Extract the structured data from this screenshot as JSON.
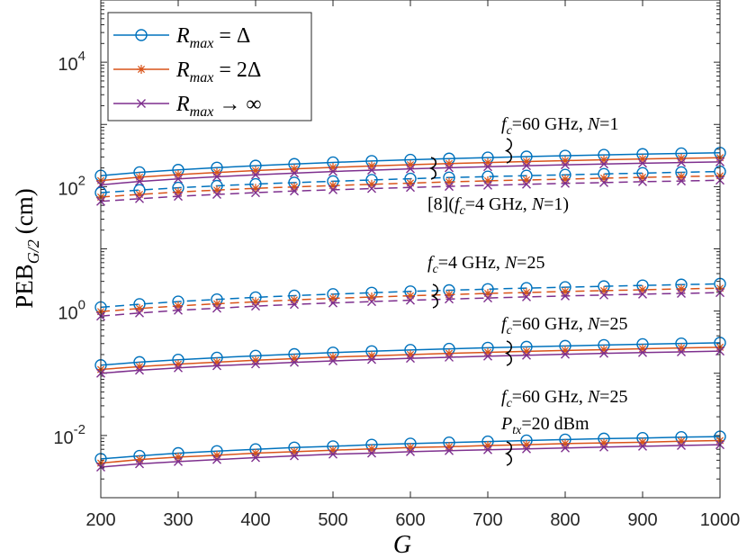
{
  "chart_data": {
    "type": "line",
    "x": [
      200,
      250,
      300,
      350,
      400,
      450,
      500,
      550,
      600,
      650,
      700,
      750,
      800,
      850,
      900,
      950,
      1000
    ],
    "xlabel": "G",
    "ylabel_main": "PEB",
    "ylabel_sub": "G/2",
    "ylabel_unit": "(cm)",
    "xlim": [
      200,
      1000
    ],
    "ylim": [
      0.001,
      100000
    ],
    "yscale": "log",
    "xticks": [
      "200",
      "300",
      "400",
      "500",
      "600",
      "700",
      "800",
      "900",
      "1000"
    ],
    "yticks": [
      {
        "value": 0.01,
        "base": "10",
        "exp": "-2"
      },
      {
        "value": 1,
        "base": "10",
        "exp": "0"
      },
      {
        "value": 100,
        "base": "10",
        "exp": "2"
      },
      {
        "value": 10000,
        "base": "10",
        "exp": "4"
      }
    ],
    "legend": {
      "position": "top-left",
      "entries": [
        {
          "label_main": "R",
          "label_sub": "max",
          "label_rest": " =  Δ",
          "color": "#0072BD",
          "marker": "o"
        },
        {
          "label_main": "R",
          "label_sub": "max",
          "label_rest": " = 2Δ",
          "color": "#D95319",
          "marker": "*"
        },
        {
          "label_main": "R",
          "label_sub": "max",
          "label_rest": " → ∞",
          "color": "#7E2F8E",
          "marker": "x"
        }
      ]
    },
    "groups": [
      {
        "label": "fc=60 GHz, N=1",
        "style": "solid",
        "series": [
          {
            "name": "Rmax = Δ",
            "color": "#0072BD",
            "marker": "o",
            "values": [
              150,
              170,
              186,
              202,
              217,
              231,
              245,
              258,
              270,
              282,
              293,
              304,
              314,
              324,
              333,
              342,
              350
            ]
          },
          {
            "name": "Rmax = 2Δ",
            "color": "#D95319",
            "marker": "*",
            "values": [
              125,
              142,
              156,
              169,
              181,
              193,
              204,
              215,
              225,
              235,
              244,
              253,
              262,
              270,
              278,
              285,
              292
            ]
          },
          {
            "name": "Rmax → ∞",
            "color": "#7E2F8E",
            "marker": "x",
            "values": [
              107,
              121,
              133,
              144,
              155,
              165,
              175,
              184,
              193,
              201,
              209,
              217,
              224,
              231,
              238,
              244,
              250
            ]
          }
        ]
      },
      {
        "label": "[8](fc=4 GHz, N=1)",
        "style": "dashed",
        "series": [
          {
            "name": "Rmax = Δ",
            "color": "#0072BD",
            "marker": "o",
            "values": [
              80,
              88,
              96,
              103,
              110,
              116,
              122,
              128,
              134,
              140,
              145,
              150,
              155,
              160,
              165,
              170,
              175
            ]
          },
          {
            "name": "Rmax = 2Δ",
            "color": "#D95319",
            "marker": "*",
            "values": [
              68,
              75,
              82,
              88,
              94,
              99,
              104,
              109,
              114,
              119,
              124,
              128,
              132,
              137,
              141,
              145,
              149
            ]
          },
          {
            "name": "Rmax → ∞",
            "color": "#7E2F8E",
            "marker": "x",
            "values": [
              58,
              64,
              70,
              75,
              80,
              85,
              89,
              93,
              97,
              101,
              105,
              109,
              113,
              116,
              120,
              123,
              127
            ]
          }
        ]
      },
      {
        "label": "fc=4 GHz, N=25",
        "style": "dashed",
        "series": [
          {
            "name": "Rmax = Δ",
            "color": "#0072BD",
            "marker": "o",
            "values": [
              1.15,
              1.29,
              1.42,
              1.54,
              1.66,
              1.77,
              1.87,
              1.97,
              2.07,
              2.16,
              2.25,
              2.34,
              2.42,
              2.5,
              2.58,
              2.66,
              2.74
            ]
          },
          {
            "name": "Rmax = 2Δ",
            "color": "#D95319",
            "marker": "*",
            "values": [
              0.98,
              1.1,
              1.21,
              1.31,
              1.41,
              1.51,
              1.6,
              1.68,
              1.76,
              1.84,
              1.92,
              1.99,
              2.06,
              2.13,
              2.2,
              2.27,
              2.33
            ]
          },
          {
            "name": "Rmax → ∞",
            "color": "#7E2F8E",
            "marker": "x",
            "values": [
              0.83,
              0.93,
              1.03,
              1.11,
              1.2,
              1.28,
              1.35,
              1.42,
              1.49,
              1.56,
              1.62,
              1.69,
              1.75,
              1.81,
              1.87,
              1.92,
              1.98
            ]
          }
        ]
      },
      {
        "label": "fc=60 GHz, N=25",
        "style": "solid",
        "series": [
          {
            "name": "Rmax = Δ",
            "color": "#0072BD",
            "marker": "o",
            "values": [
              0.135,
              0.151,
              0.165,
              0.178,
              0.191,
              0.203,
              0.215,
              0.226,
              0.237,
              0.247,
              0.257,
              0.266,
              0.275,
              0.284,
              0.293,
              0.301,
              0.309
            ]
          },
          {
            "name": "Rmax = 2Δ",
            "color": "#D95319",
            "marker": "*",
            "values": [
              0.115,
              0.128,
              0.14,
              0.151,
              0.162,
              0.172,
              0.182,
              0.191,
              0.2,
              0.209,
              0.217,
              0.225,
              0.233,
              0.24,
              0.248,
              0.255,
              0.262
            ]
          },
          {
            "name": "Rmax → ∞",
            "color": "#7E2F8E",
            "marker": "x",
            "values": [
              0.1,
              0.112,
              0.122,
              0.132,
              0.141,
              0.15,
              0.158,
              0.166,
              0.174,
              0.181,
              0.188,
              0.195,
              0.202,
              0.209,
              0.215,
              0.221,
              0.227
            ]
          }
        ]
      },
      {
        "label": "fc=60 GHz, N=25, Ptx=20 dBm",
        "style": "solid",
        "series": [
          {
            "name": "Rmax = Δ",
            "color": "#0072BD",
            "marker": "o",
            "values": [
              0.0042,
              0.0047,
              0.0052,
              0.0056,
              0.006,
              0.0064,
              0.0067,
              0.0071,
              0.0074,
              0.0077,
              0.008,
              0.0083,
              0.0086,
              0.0089,
              0.0091,
              0.0094,
              0.0096
            ]
          },
          {
            "name": "Rmax = 2Δ",
            "color": "#D95319",
            "marker": "*",
            "values": [
              0.0036,
              0.0041,
              0.0045,
              0.0048,
              0.0052,
              0.0055,
              0.0058,
              0.0061,
              0.0064,
              0.0066,
              0.0069,
              0.0071,
              0.0074,
              0.0076,
              0.0078,
              0.0081,
              0.0083
            ]
          },
          {
            "name": "Rmax → ∞",
            "color": "#7E2F8E",
            "marker": "x",
            "values": [
              0.0031,
              0.0035,
              0.0038,
              0.0041,
              0.0044,
              0.0047,
              0.005,
              0.0052,
              0.0055,
              0.0057,
              0.0059,
              0.0061,
              0.0063,
              0.0065,
              0.0067,
              0.0069,
              0.0071
            ]
          }
        ]
      }
    ],
    "annotations": [
      {
        "id": "a1",
        "parts": [
          [
            "f",
            "i"
          ],
          [
            "c",
            "sub-i"
          ],
          [
            "=60 GHz, ",
            "n"
          ],
          [
            "N",
            "i"
          ],
          [
            "=1",
            "n"
          ]
        ]
      },
      {
        "id": "a2",
        "parts": [
          [
            "[8](",
            "n"
          ],
          [
            "f",
            "i"
          ],
          [
            "c",
            "sub-i"
          ],
          [
            "=4 GHz, ",
            "n"
          ],
          [
            "N",
            "i"
          ],
          [
            "=1)",
            "n"
          ]
        ]
      },
      {
        "id": "a3",
        "parts": [
          [
            "f",
            "i"
          ],
          [
            "c",
            "sub-i"
          ],
          [
            "=4 GHz, ",
            "n"
          ],
          [
            "N",
            "i"
          ],
          [
            "=25",
            "n"
          ]
        ]
      },
      {
        "id": "a4",
        "parts": [
          [
            "f",
            "i"
          ],
          [
            "c",
            "sub-i"
          ],
          [
            "=60 GHz, ",
            "n"
          ],
          [
            "N",
            "i"
          ],
          [
            "=25",
            "n"
          ]
        ]
      },
      {
        "id": "a5",
        "parts": [
          [
            "f",
            "i"
          ],
          [
            "c",
            "sub-i"
          ],
          [
            "=60 GHz, ",
            "n"
          ],
          [
            "N",
            "i"
          ],
          [
            "=25",
            "n"
          ]
        ]
      },
      {
        "id": "a6",
        "parts": [
          [
            "P",
            "i"
          ],
          [
            "tx",
            "sub-i"
          ],
          [
            "=20 dBm",
            "n"
          ]
        ]
      }
    ]
  }
}
